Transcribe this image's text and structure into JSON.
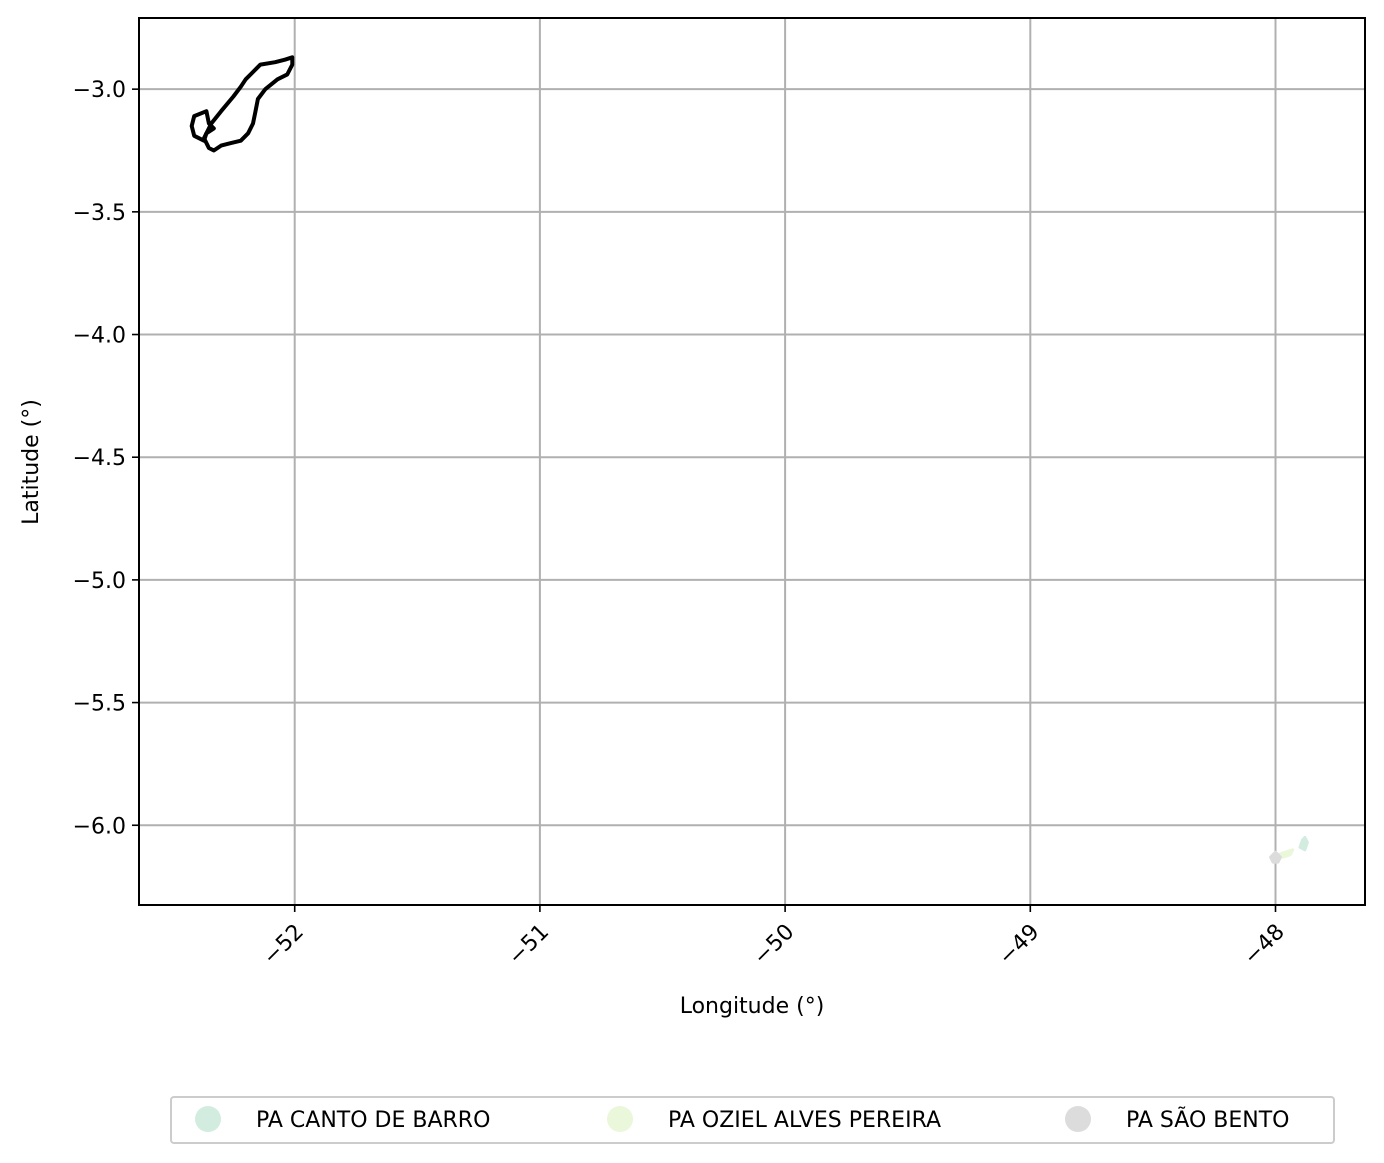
{
  "chart_data": {
    "type": "map",
    "xlabel": "Longitude (°)",
    "ylabel": "Latitude (°)",
    "xlim": [
      -52.635,
      -47.635
    ],
    "ylim": [
      -6.325,
      -2.71
    ],
    "grid": true,
    "x_ticks": [
      -52,
      -51,
      -50,
      -49,
      -48
    ],
    "x_tick_labels": [
      "−52",
      "−51",
      "−50",
      "−49",
      "−48"
    ],
    "y_ticks": [
      -3.0,
      -3.5,
      -4.0,
      -4.5,
      -5.0,
      -5.5,
      -6.0
    ],
    "y_tick_labels": [
      "−3.0",
      "−3.5",
      "−4.0",
      "−4.5",
      "−5.0",
      "−5.5",
      "−6.0"
    ],
    "legend_position": "bottom-center",
    "outline": {
      "name": "",
      "color": "#000000",
      "coordinates": [
        [
          -52.37,
          -3.2
        ],
        [
          -52.34,
          -3.14
        ],
        [
          -52.3,
          -3.09
        ],
        [
          -52.25,
          -3.03
        ],
        [
          -52.22,
          -2.99
        ],
        [
          -52.2,
          -2.96
        ],
        [
          -52.17,
          -2.93
        ],
        [
          -52.14,
          -2.9
        ],
        [
          -52.08,
          -2.89
        ],
        [
          -52.04,
          -2.88
        ],
        [
          -52.01,
          -2.87
        ],
        [
          -52.01,
          -2.9
        ],
        [
          -52.03,
          -2.94
        ],
        [
          -52.07,
          -2.96
        ],
        [
          -52.12,
          -3.0
        ],
        [
          -52.15,
          -3.04
        ],
        [
          -52.16,
          -3.09
        ],
        [
          -52.17,
          -3.14
        ],
        [
          -52.19,
          -3.18
        ],
        [
          -52.22,
          -3.21
        ],
        [
          -52.26,
          -3.22
        ],
        [
          -52.3,
          -3.23
        ],
        [
          -52.33,
          -3.25
        ],
        [
          -52.35,
          -3.24
        ],
        [
          -52.37,
          -3.2
        ]
      ],
      "appendix": [
        [
          -52.37,
          -3.21
        ],
        [
          -52.41,
          -3.19
        ],
        [
          -52.42,
          -3.15
        ],
        [
          -52.41,
          -3.11
        ],
        [
          -52.36,
          -3.09
        ],
        [
          -52.35,
          -3.14
        ],
        [
          -52.33,
          -3.16
        ],
        [
          -52.36,
          -3.18
        ],
        [
          -52.37,
          -3.21
        ]
      ]
    },
    "series": [
      {
        "name": "PA CANTO DE BARRO",
        "color": "#d2ece0",
        "coordinates": [
          [
            -47.9,
            -6.09
          ],
          [
            -47.89,
            -6.06
          ],
          [
            -47.88,
            -6.05
          ],
          [
            -47.87,
            -6.07
          ],
          [
            -47.88,
            -6.1
          ],
          [
            -47.9,
            -6.09
          ]
        ]
      },
      {
        "name": "PA OZIEL ALVES PEREIRA",
        "color": "#eaf7da",
        "coordinates": [
          [
            -47.99,
            -6.12
          ],
          [
            -47.96,
            -6.11
          ],
          [
            -47.93,
            -6.1
          ],
          [
            -47.94,
            -6.12
          ],
          [
            -47.97,
            -6.13
          ],
          [
            -47.99,
            -6.12
          ]
        ]
      },
      {
        "name": "PA SÃO BENTO",
        "color": "#dcdcdc",
        "coordinates": [
          [
            -48.02,
            -6.13
          ],
          [
            -48.0,
            -6.11
          ],
          [
            -47.98,
            -6.13
          ],
          [
            -47.99,
            -6.15
          ],
          [
            -48.01,
            -6.15
          ],
          [
            -48.02,
            -6.13
          ]
        ]
      }
    ]
  }
}
